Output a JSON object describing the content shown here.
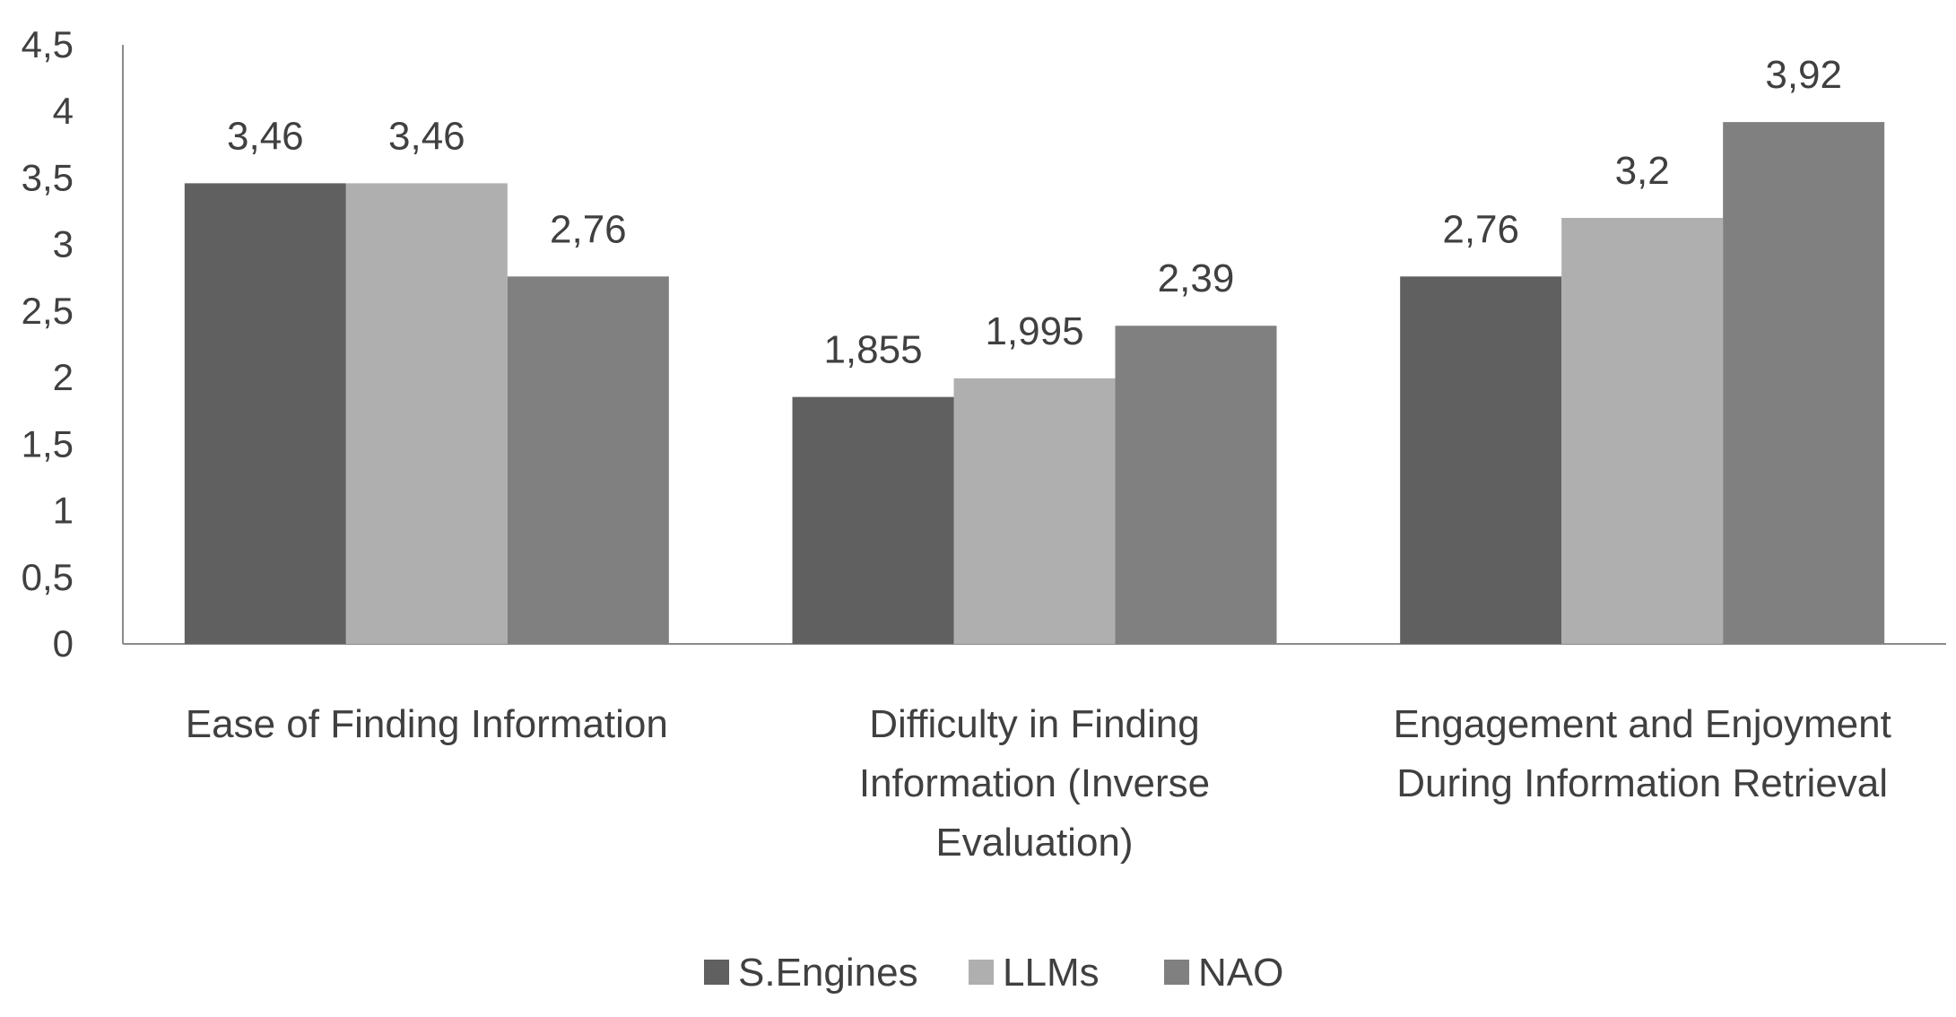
{
  "chart_data": {
    "type": "bar",
    "title": "",
    "xlabel": "",
    "ylabel": "",
    "ylim": [
      0,
      4.5
    ],
    "yticks": [
      "0",
      "0,5",
      "1",
      "1,5",
      "2",
      "2,5",
      "3",
      "3,5",
      "4",
      "4,5"
    ],
    "ytick_values": [
      0,
      0.5,
      1,
      1.5,
      2,
      2.5,
      3,
      3.5,
      4,
      4.5
    ],
    "grid": false,
    "legend_position": "bottom",
    "categories": [
      [
        "Ease of Finding Information"
      ],
      [
        "Difficulty in Finding",
        "Information (Inverse",
        "Evaluation)"
      ],
      [
        "Engagement and Enjoyment",
        "During Information Retrieval"
      ]
    ],
    "series": [
      {
        "name": "S.Engines",
        "color": "#606060",
        "values": [
          3.46,
          1.855,
          2.76
        ],
        "labels": [
          "3,46",
          "1,855",
          "2,76"
        ]
      },
      {
        "name": "LLMs",
        "color": "#afafaf",
        "values": [
          3.46,
          1.995,
          3.2
        ],
        "labels": [
          "3,46",
          "1,995",
          "3,2"
        ]
      },
      {
        "name": "NAO",
        "color": "#808080",
        "values": [
          2.76,
          2.39,
          3.92
        ],
        "labels": [
          "2,76",
          "2,39",
          "3,92"
        ]
      }
    ]
  }
}
